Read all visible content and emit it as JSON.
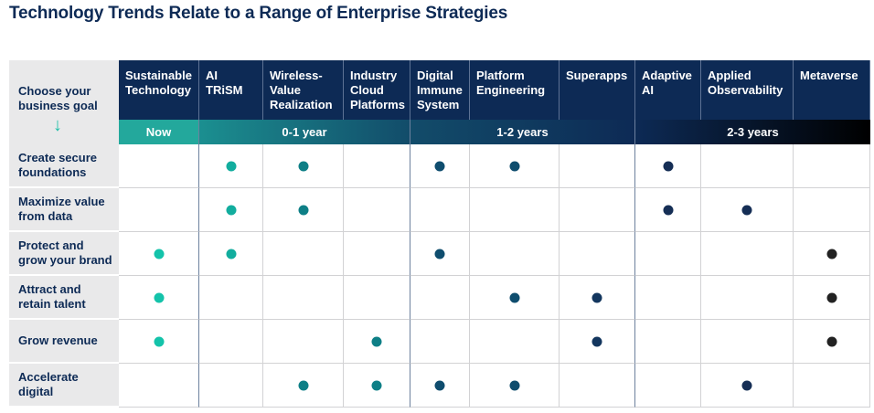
{
  "title": "Technology Trends Relate to a Range of Enterprise Strategies",
  "goal_header": [
    "Choose your",
    "business goal"
  ],
  "arrow_icon": "arrow-down-icon",
  "columns": [
    {
      "label": [
        "Sustainable",
        "Technology"
      ],
      "dot_color": "#14c3aa"
    },
    {
      "label": [
        "AI",
        "TRiSM"
      ],
      "dot_color": "#12ad9e"
    },
    {
      "label": [
        "Wireless-",
        "Value",
        "Realization"
      ],
      "dot_color": "#0e7f86"
    },
    {
      "label": [
        "Industry",
        "Cloud",
        "Platforms"
      ],
      "dot_color": "#0e7f86"
    },
    {
      "label": [
        "Digital",
        "Immune",
        "System"
      ],
      "dot_color": "#0f4d6e"
    },
    {
      "label": [
        "Platform",
        "Engineering"
      ],
      "dot_color": "#0f4d6e"
    },
    {
      "label": [
        "Superapps"
      ],
      "dot_color": "#13365e"
    },
    {
      "label": [
        "Adaptive",
        "AI"
      ],
      "dot_color": "#152e55"
    },
    {
      "label": [
        "Applied",
        "Observability"
      ],
      "dot_color": "#152e55"
    },
    {
      "label": [
        "Metaverse"
      ],
      "dot_color": "#222222"
    }
  ],
  "timeline": [
    {
      "label": "Now",
      "span": [
        0,
        0
      ],
      "bg": "#23a89c"
    },
    {
      "label": "0-1 year",
      "span": [
        1,
        3
      ],
      "bg": "linear-gradient(90deg,#1b8f90,#124c6a)"
    },
    {
      "label": "1-2 years",
      "span": [
        4,
        6
      ],
      "bg": "linear-gradient(90deg,#124c6a,#0d2a55)"
    },
    {
      "label": "2-3 years",
      "span": [
        7,
        9
      ],
      "bg": "linear-gradient(90deg,#0d2a55,#000000)"
    }
  ],
  "rows": [
    {
      "label": [
        "Create secure",
        "foundations"
      ],
      "marks": [
        1,
        2,
        4,
        5,
        7
      ]
    },
    {
      "label": [
        "Maximize value",
        "from data"
      ],
      "marks": [
        1,
        2,
        7,
        8
      ]
    },
    {
      "label": [
        "Protect and",
        "grow your brand"
      ],
      "marks": [
        0,
        1,
        4,
        9
      ]
    },
    {
      "label": [
        "Attract and",
        "retain talent"
      ],
      "marks": [
        0,
        5,
        6,
        9
      ]
    },
    {
      "label": [
        "Grow revenue"
      ],
      "marks": [
        0,
        3,
        6,
        9
      ]
    },
    {
      "label": [
        "Accelerate",
        "digital"
      ],
      "marks": [
        2,
        3,
        4,
        5,
        8
      ]
    }
  ]
}
